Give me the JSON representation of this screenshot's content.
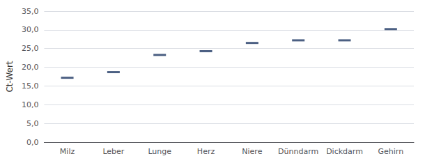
{
  "chart_data": {
    "type": "scatter",
    "marker": "dash",
    "color": "#1F3864",
    "ylabel": "Ct-Wert",
    "categories": [
      "Milz",
      "Leber",
      "Lunge",
      "Herz",
      "Niere",
      "Dünndarm",
      "Dickdarm",
      "Gehirn"
    ],
    "values": [
      17.2,
      18.7,
      23.3,
      24.3,
      26.5,
      27.2,
      27.2,
      30.2
    ],
    "ylim": [
      0,
      35
    ],
    "yticks": [
      {
        "value": 0,
        "label": "0,0"
      },
      {
        "value": 5,
        "label": "5,0"
      },
      {
        "value": 10,
        "label": "10,0"
      },
      {
        "value": 15,
        "label": "15,0"
      },
      {
        "value": 20,
        "label": "20,0"
      },
      {
        "value": 25,
        "label": "25,0"
      },
      {
        "value": 30,
        "label": "30,0"
      },
      {
        "value": 35,
        "label": "35,0"
      }
    ],
    "grid": true
  }
}
